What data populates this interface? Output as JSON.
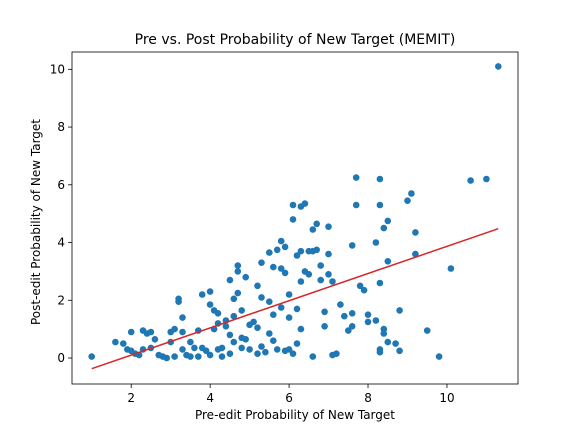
{
  "chart_data": {
    "type": "scatter",
    "title": "Pre vs. Post Probability of New Target (MEMIT)",
    "xlabel": "Pre-edit Probability of New Target",
    "ylabel": "Post-edit Probability of New Target",
    "xlim": [
      0.5,
      11.8
    ],
    "ylim": [
      -0.9,
      10.6
    ],
    "xticks": [
      2,
      4,
      6,
      8,
      10
    ],
    "yticks": [
      0,
      2,
      4,
      6,
      8,
      10
    ],
    "grid": false,
    "colors": {
      "points": "#1f77b4",
      "fit_line": "#d62728"
    },
    "fit_line": {
      "x": [
        1.0,
        11.3
      ],
      "y": [
        -0.37,
        4.48
      ]
    },
    "points": [
      [
        1.0,
        0.05
      ],
      [
        1.6,
        0.55
      ],
      [
        1.8,
        0.5
      ],
      [
        1.9,
        0.3
      ],
      [
        2.0,
        0.9
      ],
      [
        2.0,
        0.25
      ],
      [
        2.1,
        0.15
      ],
      [
        2.2,
        0.1
      ],
      [
        2.3,
        0.95
      ],
      [
        2.3,
        0.3
      ],
      [
        2.4,
        0.85
      ],
      [
        2.5,
        0.9
      ],
      [
        2.5,
        0.35
      ],
      [
        2.6,
        0.65
      ],
      [
        2.7,
        0.1
      ],
      [
        2.8,
        0.05
      ],
      [
        2.9,
        0.0
      ],
      [
        3.0,
        0.9
      ],
      [
        3.0,
        0.55
      ],
      [
        3.1,
        1.0
      ],
      [
        3.1,
        0.05
      ],
      [
        3.2,
        2.05
      ],
      [
        3.2,
        1.95
      ],
      [
        3.3,
        0.9
      ],
      [
        3.3,
        1.4
      ],
      [
        3.3,
        0.3
      ],
      [
        3.4,
        0.1
      ],
      [
        3.5,
        0.55
      ],
      [
        3.5,
        0.05
      ],
      [
        3.6,
        0.35
      ],
      [
        3.7,
        0.95
      ],
      [
        3.7,
        0.05
      ],
      [
        3.8,
        0.35
      ],
      [
        3.8,
        2.2
      ],
      [
        3.9,
        0.25
      ],
      [
        4.0,
        2.3
      ],
      [
        4.0,
        1.85
      ],
      [
        4.0,
        0.1
      ],
      [
        4.1,
        1.0
      ],
      [
        4.1,
        1.65
      ],
      [
        4.2,
        1.55
      ],
      [
        4.2,
        0.3
      ],
      [
        4.2,
        1.2
      ],
      [
        4.3,
        0.05
      ],
      [
        4.3,
        0.35
      ],
      [
        4.4,
        1.3
      ],
      [
        4.4,
        1.1
      ],
      [
        4.5,
        2.7
      ],
      [
        4.5,
        0.8
      ],
      [
        4.5,
        0.15
      ],
      [
        4.6,
        2.05
      ],
      [
        4.6,
        1.45
      ],
      [
        4.6,
        0.55
      ],
      [
        4.7,
        3.2
      ],
      [
        4.7,
        3.0
      ],
      [
        4.7,
        2.25
      ],
      [
        4.8,
        1.65
      ],
      [
        4.8,
        0.7
      ],
      [
        4.8,
        0.35
      ],
      [
        4.9,
        2.8
      ],
      [
        4.9,
        0.65
      ],
      [
        5.0,
        0.3
      ],
      [
        5.0,
        1.15
      ],
      [
        5.1,
        1.25
      ],
      [
        5.2,
        1.05
      ],
      [
        5.2,
        0.15
      ],
      [
        5.2,
        2.5
      ],
      [
        5.3,
        3.3
      ],
      [
        5.3,
        2.1
      ],
      [
        5.3,
        0.4
      ],
      [
        5.4,
        0.2
      ],
      [
        5.5,
        3.65
      ],
      [
        5.5,
        1.95
      ],
      [
        5.5,
        0.85
      ],
      [
        5.6,
        3.15
      ],
      [
        5.6,
        1.5
      ],
      [
        5.6,
        0.6
      ],
      [
        5.7,
        3.75
      ],
      [
        5.7,
        0.3
      ],
      [
        5.8,
        4.05
      ],
      [
        5.8,
        3.1
      ],
      [
        5.8,
        1.75
      ],
      [
        5.9,
        3.85
      ],
      [
        5.9,
        2.95
      ],
      [
        5.9,
        0.25
      ],
      [
        6.0,
        2.2
      ],
      [
        6.0,
        1.4
      ],
      [
        6.0,
        0.3
      ],
      [
        6.1,
        5.3
      ],
      [
        6.1,
        4.8
      ],
      [
        6.1,
        0.15
      ],
      [
        6.2,
        3.55
      ],
      [
        6.2,
        1.7
      ],
      [
        6.2,
        0.5
      ],
      [
        6.3,
        5.25
      ],
      [
        6.3,
        3.7
      ],
      [
        6.3,
        2.65
      ],
      [
        6.3,
        1.0
      ],
      [
        6.4,
        5.35
      ],
      [
        6.4,
        3.0
      ],
      [
        6.5,
        3.7
      ],
      [
        6.5,
        2.9
      ],
      [
        6.6,
        4.45
      ],
      [
        6.6,
        3.7
      ],
      [
        6.6,
        0.05
      ],
      [
        6.7,
        4.65
      ],
      [
        6.7,
        3.75
      ],
      [
        6.8,
        3.2
      ],
      [
        6.8,
        2.7
      ],
      [
        6.9,
        1.6
      ],
      [
        6.9,
        1.1
      ],
      [
        7.0,
        4.55
      ],
      [
        7.0,
        3.6
      ],
      [
        7.0,
        2.9
      ],
      [
        7.1,
        2.65
      ],
      [
        7.1,
        0.1
      ],
      [
        7.2,
        0.15
      ],
      [
        7.3,
        1.85
      ],
      [
        7.4,
        1.45
      ],
      [
        7.5,
        0.95
      ],
      [
        7.6,
        3.9
      ],
      [
        7.6,
        1.55
      ],
      [
        7.6,
        1.1
      ],
      [
        7.7,
        6.25
      ],
      [
        7.7,
        5.3
      ],
      [
        7.8,
        2.5
      ],
      [
        7.9,
        2.35
      ],
      [
        8.0,
        1.5
      ],
      [
        8.0,
        1.25
      ],
      [
        8.2,
        4.0
      ],
      [
        8.2,
        1.3
      ],
      [
        8.3,
        6.2
      ],
      [
        8.3,
        5.3
      ],
      [
        8.3,
        2.6
      ],
      [
        8.3,
        0.3
      ],
      [
        8.3,
        0.2
      ],
      [
        8.4,
        4.5
      ],
      [
        8.4,
        1.0
      ],
      [
        8.4,
        0.85
      ],
      [
        8.5,
        4.75
      ],
      [
        8.5,
        3.35
      ],
      [
        8.5,
        0.55
      ],
      [
        8.7,
        0.5
      ],
      [
        8.8,
        1.65
      ],
      [
        8.8,
        0.25
      ],
      [
        9.0,
        5.45
      ],
      [
        9.1,
        5.7
      ],
      [
        9.2,
        4.35
      ],
      [
        9.2,
        3.6
      ],
      [
        9.5,
        0.95
      ],
      [
        9.8,
        0.05
      ],
      [
        10.1,
        3.1
      ],
      [
        10.6,
        6.15
      ],
      [
        11.0,
        6.2
      ],
      [
        11.3,
        10.1
      ]
    ]
  }
}
